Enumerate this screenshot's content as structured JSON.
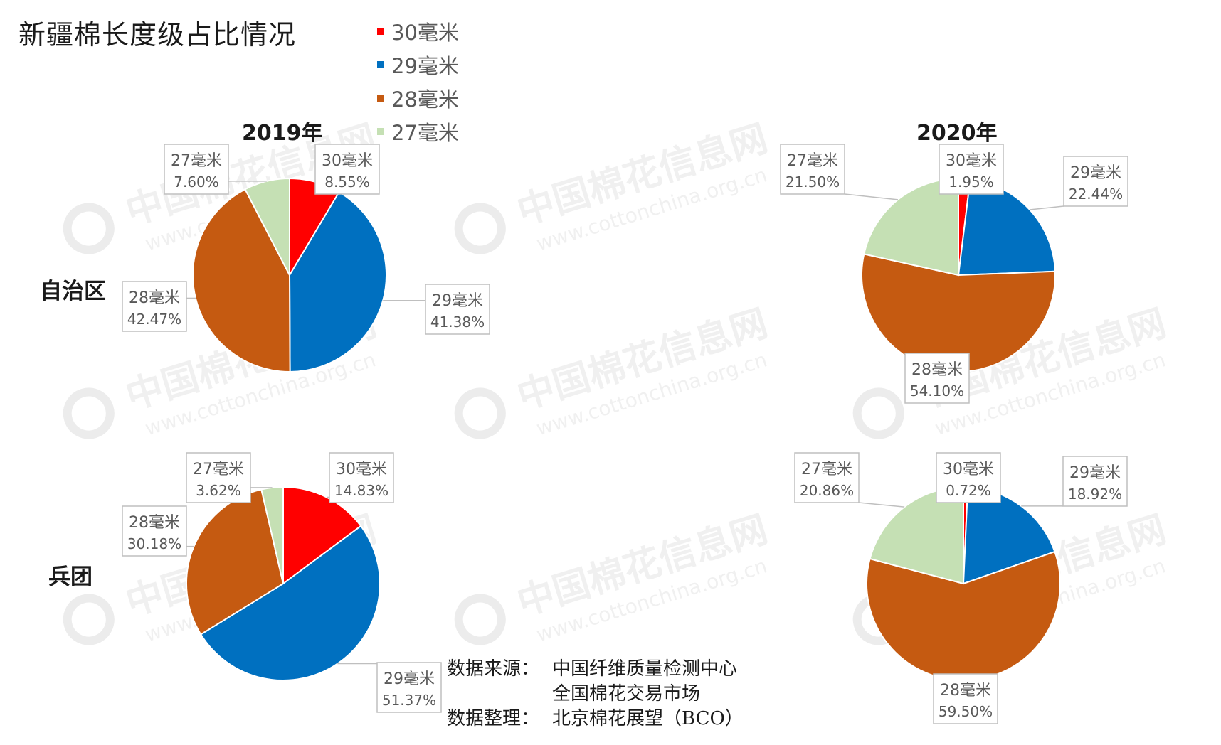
{
  "title": "新疆棉长度级占比情况",
  "legend": [
    {
      "label": "30毫米",
      "color": "#ff0000"
    },
    {
      "label": "29毫米",
      "color": "#0070c0"
    },
    {
      "label": "28毫米",
      "color": "#c55a11"
    },
    {
      "label": "27毫米",
      "color": "#c5e0b4"
    }
  ],
  "years": [
    "2019年",
    "2020年"
  ],
  "regions": [
    "自治区",
    "兵团"
  ],
  "watermark": {
    "cn": "中国棉花信息网",
    "url": "www.cottonchina.org.cn"
  },
  "source": {
    "label_source": "数据来源：",
    "source_1": "中国纤维质量检测中心",
    "source_2": "全国棉花交易市场",
    "label_compiled": "数据整理：",
    "compiled_by": "北京棉花展望（BCO）"
  },
  "chart_data": [
    {
      "type": "pie",
      "title": "2019年",
      "row_label": "自治区",
      "categories": [
        "30毫米",
        "29毫米",
        "28毫米",
        "27毫米"
      ],
      "values": [
        8.55,
        41.38,
        42.47,
        7.6
      ],
      "value_labels": [
        "8.55%",
        "41.38%",
        "42.47%",
        "7.60%"
      ]
    },
    {
      "type": "pie",
      "title": "2020年",
      "row_label": "自治区",
      "categories": [
        "30毫米",
        "29毫米",
        "28毫米",
        "27毫米"
      ],
      "values": [
        1.95,
        22.44,
        54.1,
        21.5
      ],
      "value_labels": [
        "1.95%",
        "22.44%",
        "54.10%",
        "21.50%"
      ]
    },
    {
      "type": "pie",
      "title": "2019年",
      "row_label": "兵团",
      "categories": [
        "30毫米",
        "29毫米",
        "28毫米",
        "27毫米"
      ],
      "values": [
        14.83,
        51.37,
        30.18,
        3.62
      ],
      "value_labels": [
        "14.83%",
        "51.37%",
        "30.18%",
        "3.62%"
      ]
    },
    {
      "type": "pie",
      "title": "2020年",
      "row_label": "兵团",
      "categories": [
        "30毫米",
        "29毫米",
        "28毫米",
        "27毫米"
      ],
      "values": [
        0.72,
        18.92,
        59.5,
        20.86
      ],
      "value_labels": [
        "0.72%",
        "18.92%",
        "59.50%",
        "20.86%"
      ]
    }
  ]
}
